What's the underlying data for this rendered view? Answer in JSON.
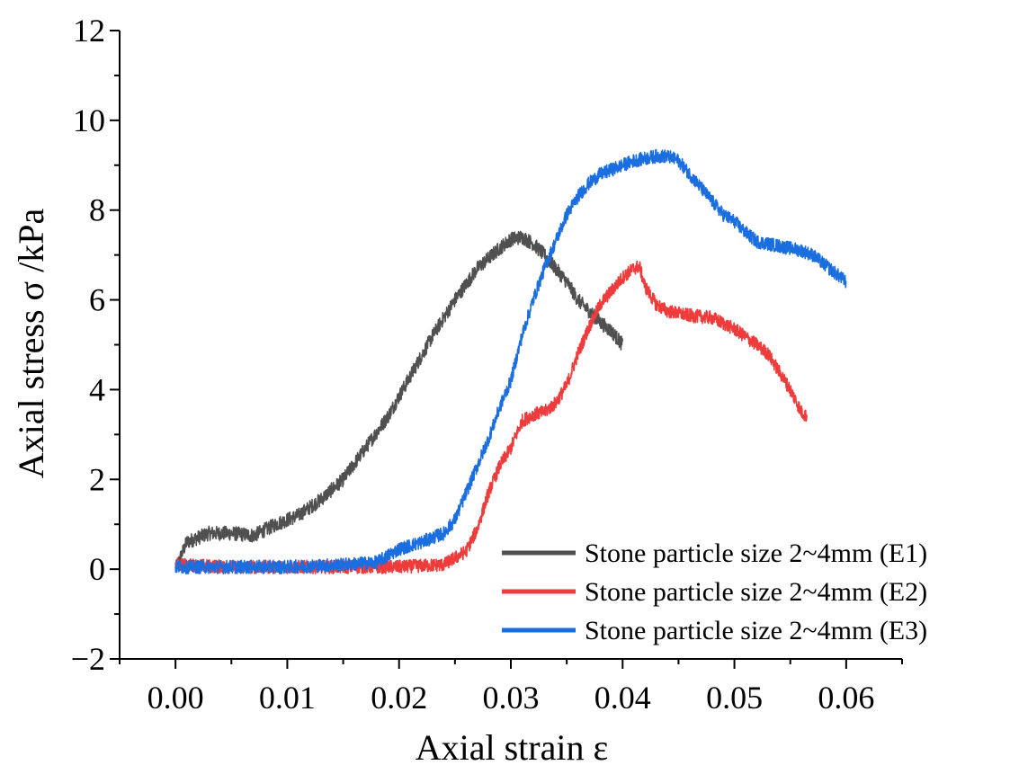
{
  "chart_data": {
    "type": "line",
    "title": "",
    "xlabel": "Axial strain ε",
    "ylabel": "Axial stress σ /kPa",
    "xlim": [
      -0.005,
      0.065
    ],
    "ylim": [
      -2,
      12
    ],
    "x_ticks": [
      0.0,
      0.01,
      0.02,
      0.03,
      0.04,
      0.05,
      0.06
    ],
    "x_tick_labels": [
      "0.00",
      "0.01",
      "0.02",
      "0.03",
      "0.04",
      "0.05",
      "0.06"
    ],
    "y_ticks": [
      -2,
      0,
      2,
      4,
      6,
      8,
      10,
      12
    ],
    "y_tick_labels": [
      "−2",
      "0",
      "2",
      "4",
      "6",
      "8",
      "10",
      "12"
    ],
    "grid": false,
    "legend_position": "bottom-right",
    "series": [
      {
        "name": "Stone particle size 2~4mm (E1)",
        "color": "#505050",
        "noise": 0.16,
        "x": [
          0.0,
          0.001,
          0.003,
          0.005,
          0.007,
          0.009,
          0.011,
          0.013,
          0.015,
          0.017,
          0.019,
          0.021,
          0.023,
          0.025,
          0.027,
          0.029,
          0.03,
          0.031,
          0.032,
          0.033,
          0.034,
          0.035,
          0.036,
          0.037,
          0.038,
          0.039,
          0.04
        ],
        "values": [
          0.0,
          0.6,
          0.8,
          0.8,
          0.75,
          1.0,
          1.2,
          1.55,
          2.0,
          2.7,
          3.4,
          4.3,
          5.2,
          6.0,
          6.7,
          7.15,
          7.35,
          7.4,
          7.25,
          7.0,
          6.7,
          6.4,
          6.0,
          5.75,
          5.5,
          5.3,
          5.0
        ]
      },
      {
        "name": "Stone particle size 2~4mm (E2)",
        "color": "#ee3b3b",
        "noise": 0.15,
        "x": [
          0.0,
          0.005,
          0.01,
          0.015,
          0.02,
          0.024,
          0.026,
          0.027,
          0.028,
          0.029,
          0.03,
          0.031,
          0.032,
          0.033,
          0.034,
          0.035,
          0.036,
          0.037,
          0.038,
          0.039,
          0.04,
          0.041,
          0.0415,
          0.042,
          0.043,
          0.044,
          0.046,
          0.048,
          0.05,
          0.052,
          0.053,
          0.054,
          0.055,
          0.056,
          0.0565
        ],
        "values": [
          0.1,
          0.05,
          0.05,
          0.05,
          0.05,
          0.1,
          0.4,
          0.9,
          1.7,
          2.3,
          2.7,
          3.3,
          3.45,
          3.5,
          3.7,
          4.1,
          4.8,
          5.4,
          5.9,
          6.2,
          6.5,
          6.7,
          6.75,
          6.3,
          5.9,
          5.75,
          5.65,
          5.6,
          5.35,
          5.0,
          4.8,
          4.4,
          4.0,
          3.5,
          3.4
        ]
      },
      {
        "name": "Stone particle size 2~4mm (E3)",
        "color": "#1a6ee0",
        "noise": 0.15,
        "x": [
          0.0,
          0.005,
          0.01,
          0.015,
          0.018,
          0.02,
          0.022,
          0.024,
          0.025,
          0.026,
          0.027,
          0.028,
          0.029,
          0.03,
          0.031,
          0.032,
          0.033,
          0.034,
          0.035,
          0.036,
          0.037,
          0.038,
          0.039,
          0.04,
          0.041,
          0.042,
          0.043,
          0.044,
          0.045,
          0.046,
          0.047,
          0.048,
          0.049,
          0.05,
          0.051,
          0.052,
          0.053,
          0.054,
          0.055,
          0.056,
          0.057,
          0.058,
          0.059,
          0.06
        ],
        "values": [
          0.05,
          0.05,
          0.05,
          0.1,
          0.15,
          0.45,
          0.6,
          0.8,
          1.1,
          1.7,
          2.3,
          2.9,
          3.6,
          4.2,
          5.2,
          6.0,
          6.7,
          7.3,
          7.9,
          8.3,
          8.6,
          8.8,
          8.9,
          9.0,
          9.1,
          9.15,
          9.2,
          9.2,
          9.1,
          8.8,
          8.5,
          8.2,
          7.9,
          7.75,
          7.5,
          7.3,
          7.25,
          7.2,
          7.15,
          7.1,
          7.0,
          6.8,
          6.6,
          6.4
        ]
      }
    ]
  }
}
